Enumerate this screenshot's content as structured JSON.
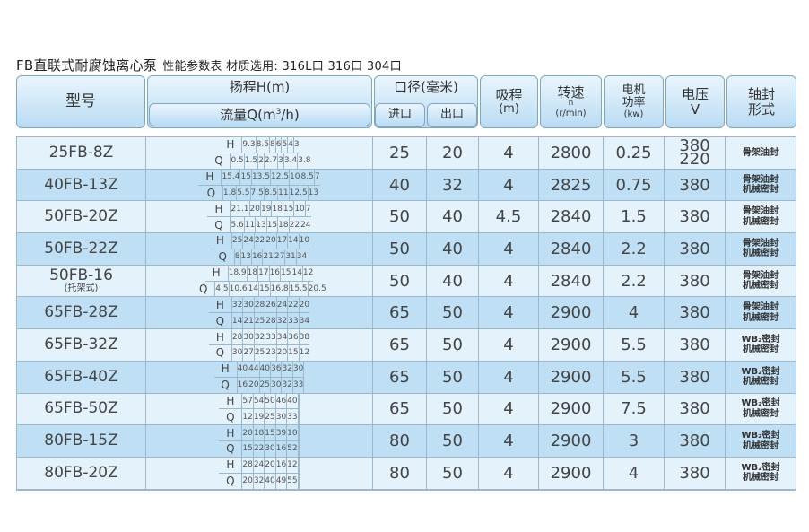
{
  "title": {
    "main": "FB直联式耐腐蚀离心泵",
    "sub": "性能参数表 材质选用: 316L口 316口 304口"
  },
  "header": {
    "model": "型号",
    "head": "扬程H(m)",
    "flow_pre": "流量Q(m",
    "flow_sup": "3",
    "flow_post": "/h)",
    "diameter": "口径(毫米)",
    "inlet": "进口",
    "outlet": "出口",
    "suction": "吸程",
    "suction_unit": "(m)",
    "speed": "转速",
    "speed_sym": "n",
    "speed_unit": "(r/min)",
    "power1": "电机",
    "power2": "功率",
    "power_unit": "(kw)",
    "voltage": "电压",
    "voltage_unit": "V",
    "seal1": "轴封",
    "seal2": "形式",
    "h_label": "H",
    "q_label": "Q"
  },
  "rows": [
    {
      "model": "25FB-8Z",
      "H": [
        "9.3",
        "8.5",
        "8",
        "6",
        "5",
        "4",
        "3"
      ],
      "Q": [
        "0.5",
        "1.5",
        "2",
        "2.7",
        "3",
        "3.4",
        "3.8"
      ],
      "inlet": "25",
      "outlet": "20",
      "suction": "4",
      "speed": "2800",
      "power": "0.25",
      "voltage": [
        "380",
        "220"
      ],
      "seal": [
        "骨架油封"
      ]
    },
    {
      "model": "40FB-13Z",
      "H": [
        "15.4",
        "15",
        "13.5",
        "12.5",
        "10",
        "8.5",
        "7"
      ],
      "Q": [
        "1.8",
        "5.5",
        "7.5",
        "8.5",
        "11",
        "12.5",
        "13"
      ],
      "inlet": "40",
      "outlet": "32",
      "suction": "4",
      "speed": "2825",
      "power": "0.75",
      "voltage": [
        "380"
      ],
      "seal": [
        "骨架油封",
        "机械密封"
      ]
    },
    {
      "model": "50FB-20Z",
      "H": [
        "21.1",
        "20",
        "19",
        "18",
        "15",
        "10",
        "7"
      ],
      "Q": [
        "5.6",
        "11",
        "13",
        "15",
        "18",
        "22",
        "24"
      ],
      "inlet": "50",
      "outlet": "40",
      "suction": "4.5",
      "speed": "2840",
      "power": "1.5",
      "voltage": [
        "380"
      ],
      "seal": [
        "骨架油封",
        "机械密封"
      ]
    },
    {
      "model": "50FB-22Z",
      "H": [
        "25",
        "24",
        "22",
        "20",
        "17",
        "14",
        "10"
      ],
      "Q": [
        "8",
        "13",
        "16",
        "21",
        "27",
        "31",
        "34"
      ],
      "inlet": "50",
      "outlet": "40",
      "suction": "4",
      "speed": "2840",
      "power": "2.2",
      "voltage": [
        "380"
      ],
      "seal": [
        "骨架油封",
        "机械密封"
      ]
    },
    {
      "model": "50FB-16",
      "note": "(托架式)",
      "H": [
        "18.9",
        "18",
        "17",
        "16",
        "15",
        "14",
        "12"
      ],
      "Q": [
        "4.5",
        "10.6",
        "14",
        "15",
        "16.8",
        "15.5",
        "20.5"
      ],
      "inlet": "50",
      "outlet": "40",
      "suction": "4",
      "speed": "2840",
      "power": "2.2",
      "voltage": [
        "380"
      ],
      "seal": [
        "骨架油封",
        "机械密封"
      ]
    },
    {
      "model": "65FB-28Z",
      "H": [
        "32",
        "30",
        "28",
        "26",
        "24",
        "22",
        "20"
      ],
      "Q": [
        "14",
        "21",
        "25",
        "28",
        "32",
        "33",
        "34"
      ],
      "inlet": "65",
      "outlet": "50",
      "suction": "4",
      "speed": "2900",
      "power": "4",
      "voltage": [
        "380"
      ],
      "seal": [
        "骨架油封",
        "机械密封"
      ]
    },
    {
      "model": "65FB-32Z",
      "H": [
        "28",
        "30",
        "32",
        "33",
        "34",
        "36",
        "38"
      ],
      "Q": [
        "30",
        "27",
        "25",
        "23",
        "20",
        "15",
        "12"
      ],
      "inlet": "65",
      "outlet": "50",
      "suction": "4",
      "speed": "2900",
      "power": "5.5",
      "voltage": [
        "380"
      ],
      "seal": [
        "WB₂密封",
        "机械密封"
      ]
    },
    {
      "model": "65FB-40Z",
      "H": [
        "40",
        "44",
        "40",
        "36",
        "32",
        "30",
        ""
      ],
      "Q": [
        "16",
        "20",
        "25",
        "30",
        "32",
        "33",
        ""
      ],
      "inlet": "65",
      "outlet": "50",
      "suction": "4",
      "speed": "2900",
      "power": "5.5",
      "voltage": [
        "380"
      ],
      "seal": [
        "WB₂密封",
        "机械密封"
      ]
    },
    {
      "model": "65FB-50Z",
      "H": [
        "57",
        "54",
        "50",
        "46",
        "40",
        "",
        ""
      ],
      "Q": [
        "12",
        "19",
        "25",
        "30",
        "33",
        "",
        ""
      ],
      "inlet": "65",
      "outlet": "50",
      "suction": "4",
      "speed": "2900",
      "power": "7.5",
      "voltage": [
        "380"
      ],
      "seal": [
        "WB₂密封",
        "机械密封"
      ]
    },
    {
      "model": "80FB-15Z",
      "H": [
        "20",
        "18",
        "15",
        "39",
        "10",
        "",
        ""
      ],
      "Q": [
        "15",
        "22",
        "30",
        "16",
        "52",
        "",
        ""
      ],
      "inlet": "80",
      "outlet": "50",
      "suction": "4",
      "speed": "2900",
      "power": "3",
      "voltage": [
        "380"
      ],
      "seal": [
        "WB₂密封",
        "机械密封"
      ]
    },
    {
      "model": "80FB-20Z",
      "H": [
        "28",
        "24",
        "20",
        "16",
        "12",
        "",
        ""
      ],
      "Q": [
        "20",
        "32",
        "40",
        "49",
        "55",
        "",
        ""
      ],
      "inlet": "80",
      "outlet": "50",
      "suction": "4",
      "speed": "2900",
      "power": "4",
      "voltage": [
        "380"
      ],
      "seal": [
        "WB₂密封",
        "机械密封"
      ]
    }
  ]
}
